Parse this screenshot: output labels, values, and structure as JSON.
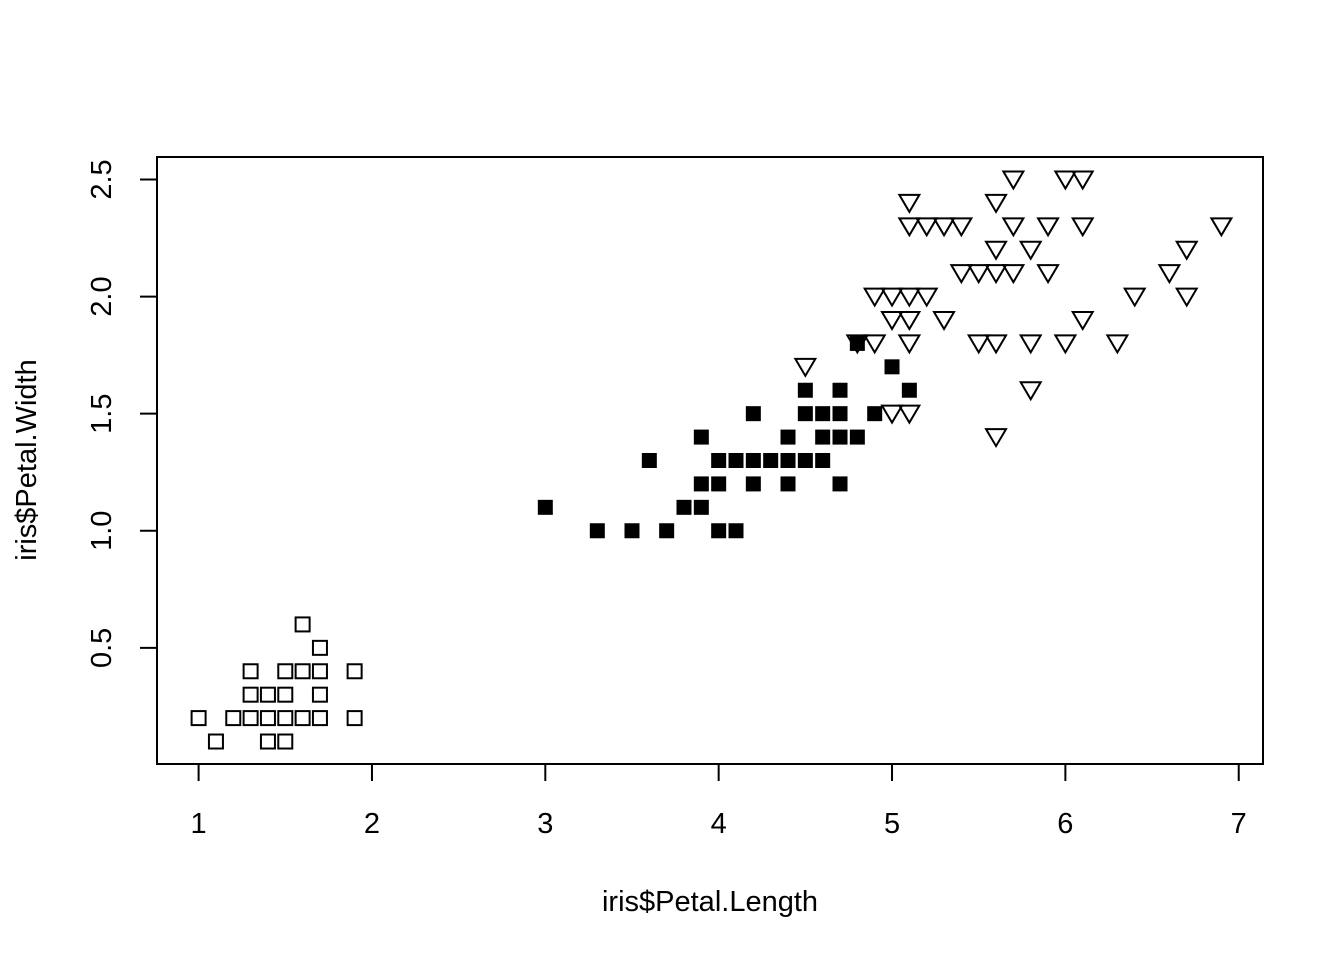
{
  "chart_data": {
    "type": "scatter",
    "title": "",
    "xlabel": "iris$Petal.Length",
    "ylabel": "iris$Petal.Width",
    "xlim": [
      0.76,
      7.14
    ],
    "ylim": [
      0.004,
      2.596
    ],
    "x_ticks": [
      1,
      2,
      3,
      4,
      5,
      6,
      7
    ],
    "x_tick_labels": [
      "1",
      "2",
      "3",
      "4",
      "5",
      "6",
      "7"
    ],
    "y_ticks": [
      0.5,
      1.0,
      1.5,
      2.0,
      2.5
    ],
    "y_tick_labels": [
      "0.5",
      "1.0",
      "1.5",
      "2.0",
      "2.5"
    ],
    "grid": false,
    "legend": "none",
    "series": [
      {
        "marker": "open-square",
        "color": "#000000",
        "points": [
          [
            1.0,
            0.2
          ],
          [
            1.1,
            0.1
          ],
          [
            1.2,
            0.2
          ],
          [
            1.3,
            0.2
          ],
          [
            1.3,
            0.3
          ],
          [
            1.3,
            0.4
          ],
          [
            1.4,
            0.1
          ],
          [
            1.4,
            0.2
          ],
          [
            1.4,
            0.3
          ],
          [
            1.5,
            0.1
          ],
          [
            1.5,
            0.2
          ],
          [
            1.5,
            0.3
          ],
          [
            1.5,
            0.4
          ],
          [
            1.6,
            0.2
          ],
          [
            1.6,
            0.4
          ],
          [
            1.6,
            0.6
          ],
          [
            1.7,
            0.2
          ],
          [
            1.7,
            0.3
          ],
          [
            1.7,
            0.4
          ],
          [
            1.7,
            0.5
          ],
          [
            1.9,
            0.2
          ],
          [
            1.9,
            0.4
          ]
        ]
      },
      {
        "marker": "filled-square",
        "color": "#000000",
        "points": [
          [
            3.0,
            1.1
          ],
          [
            3.3,
            1.0
          ],
          [
            3.5,
            1.0
          ],
          [
            3.6,
            1.3
          ],
          [
            3.7,
            1.0
          ],
          [
            3.8,
            1.1
          ],
          [
            3.9,
            1.1
          ],
          [
            3.9,
            1.2
          ],
          [
            3.9,
            1.4
          ],
          [
            4.0,
            1.0
          ],
          [
            4.0,
            1.2
          ],
          [
            4.0,
            1.3
          ],
          [
            4.1,
            1.0
          ],
          [
            4.1,
            1.3
          ],
          [
            4.2,
            1.2
          ],
          [
            4.2,
            1.3
          ],
          [
            4.2,
            1.5
          ],
          [
            4.3,
            1.3
          ],
          [
            4.4,
            1.2
          ],
          [
            4.4,
            1.3
          ],
          [
            4.4,
            1.4
          ],
          [
            4.5,
            1.3
          ],
          [
            4.5,
            1.5
          ],
          [
            4.5,
            1.6
          ],
          [
            4.6,
            1.3
          ],
          [
            4.6,
            1.4
          ],
          [
            4.6,
            1.5
          ],
          [
            4.7,
            1.2
          ],
          [
            4.7,
            1.4
          ],
          [
            4.7,
            1.5
          ],
          [
            4.7,
            1.6
          ],
          [
            4.8,
            1.4
          ],
          [
            4.8,
            1.8
          ],
          [
            4.9,
            1.5
          ],
          [
            5.0,
            1.7
          ],
          [
            5.1,
            1.6
          ]
        ]
      },
      {
        "marker": "open-triangle-down",
        "color": "#000000",
        "points": [
          [
            4.5,
            1.7
          ],
          [
            4.8,
            1.8
          ],
          [
            4.9,
            1.8
          ],
          [
            4.9,
            2.0
          ],
          [
            5.0,
            1.5
          ],
          [
            5.0,
            1.9
          ],
          [
            5.0,
            2.0
          ],
          [
            5.1,
            1.5
          ],
          [
            5.1,
            1.8
          ],
          [
            5.1,
            1.9
          ],
          [
            5.1,
            2.0
          ],
          [
            5.1,
            2.3
          ],
          [
            5.1,
            2.4
          ],
          [
            5.2,
            2.0
          ],
          [
            5.2,
            2.3
          ],
          [
            5.3,
            1.9
          ],
          [
            5.3,
            2.3
          ],
          [
            5.4,
            2.1
          ],
          [
            5.4,
            2.3
          ],
          [
            5.5,
            1.8
          ],
          [
            5.5,
            2.1
          ],
          [
            5.6,
            1.4
          ],
          [
            5.6,
            1.8
          ],
          [
            5.6,
            2.1
          ],
          [
            5.6,
            2.2
          ],
          [
            5.6,
            2.4
          ],
          [
            5.7,
            2.1
          ],
          [
            5.7,
            2.3
          ],
          [
            5.7,
            2.5
          ],
          [
            5.8,
            1.6
          ],
          [
            5.8,
            1.8
          ],
          [
            5.8,
            2.2
          ],
          [
            5.9,
            2.1
          ],
          [
            5.9,
            2.3
          ],
          [
            6.0,
            1.8
          ],
          [
            6.0,
            2.5
          ],
          [
            6.1,
            1.9
          ],
          [
            6.1,
            2.3
          ],
          [
            6.1,
            2.5
          ],
          [
            6.3,
            1.8
          ],
          [
            6.4,
            2.0
          ],
          [
            6.6,
            2.1
          ],
          [
            6.7,
            2.0
          ],
          [
            6.7,
            2.2
          ],
          [
            6.9,
            2.3
          ]
        ]
      }
    ]
  }
}
